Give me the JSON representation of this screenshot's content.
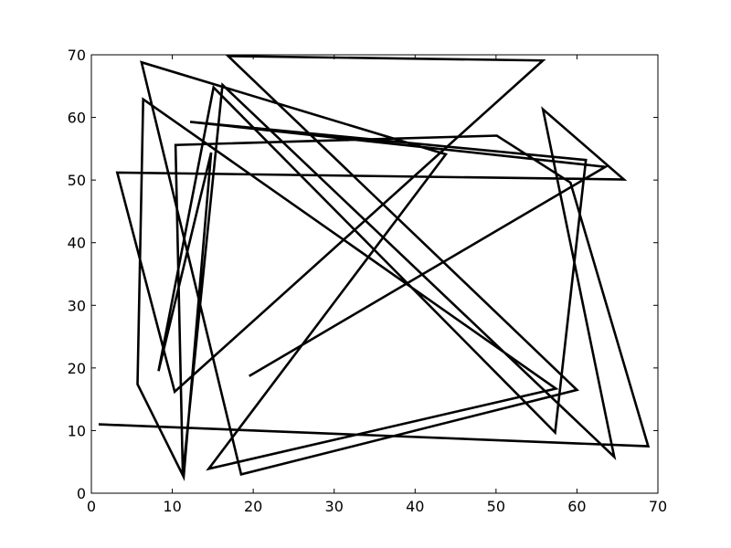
{
  "chart_data": {
    "type": "line",
    "title": "",
    "xlabel": "",
    "ylabel": "",
    "xlim": [
      0,
      70
    ],
    "ylim": [
      0,
      70
    ],
    "grid": false,
    "legend": "none",
    "x_ticks": [
      "0",
      "10",
      "20",
      "30",
      "40",
      "50",
      "60",
      "70"
    ],
    "y_ticks": [
      "0",
      "10",
      "20",
      "30",
      "40",
      "50",
      "60",
      "70"
    ],
    "line_color": "#000000",
    "series": [
      {
        "points": [
          [
            0.9,
            11.0
          ],
          [
            68.8,
            7.5
          ],
          [
            59.2,
            49.6
          ],
          [
            50.1,
            57.1
          ],
          [
            10.4,
            55.6
          ],
          [
            11.3,
            2.9
          ],
          [
            16.2,
            65.2
          ],
          [
            64.6,
            5.8
          ],
          [
            55.8,
            61.3
          ],
          [
            65.8,
            50.1
          ],
          [
            3.2,
            51.2
          ],
          [
            10.3,
            16.2
          ],
          [
            55.8,
            69.1
          ],
          [
            16.9,
            69.8
          ],
          [
            60.0,
            16.5
          ],
          [
            18.5,
            3.0
          ],
          [
            6.2,
            68.8
          ],
          [
            43.8,
            54.1
          ],
          [
            14.5,
            3.9
          ],
          [
            57.4,
            16.7
          ],
          [
            6.4,
            62.9
          ],
          [
            5.7,
            17.4
          ],
          [
            11.4,
            2.6
          ],
          [
            14.8,
            54.4
          ],
          [
            8.3,
            19.5
          ],
          [
            15.1,
            64.8
          ],
          [
            57.3,
            9.7
          ],
          [
            61.1,
            53.2
          ],
          [
            12.2,
            59.3
          ],
          [
            63.5,
            52.1
          ],
          [
            19.5,
            18.7
          ]
        ]
      }
    ]
  }
}
